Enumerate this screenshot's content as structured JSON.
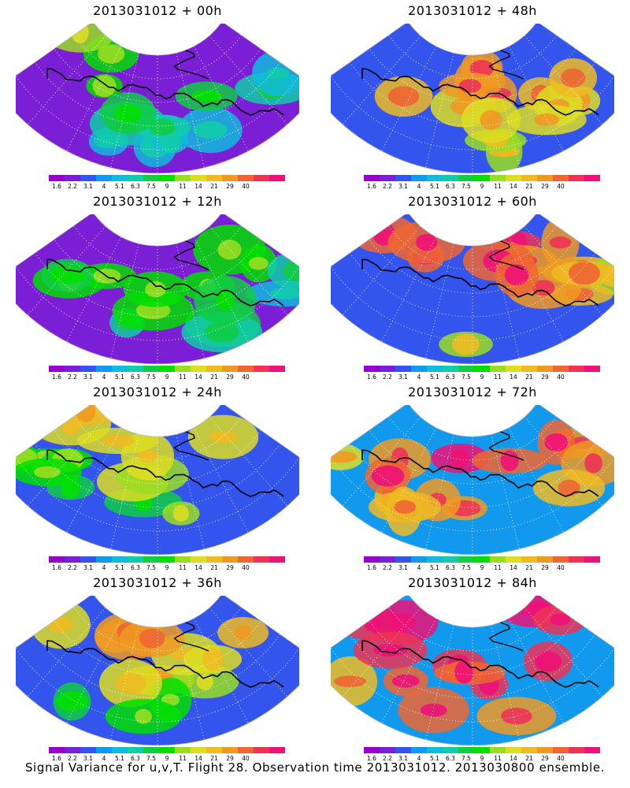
{
  "panels": [
    {
      "title": "2013031012 + 00h",
      "lead": 0
    },
    {
      "title": "2013031012 + 48h",
      "lead": 48
    },
    {
      "title": "2013031012 + 12h",
      "lead": 12
    },
    {
      "title": "2013031012 + 60h",
      "lead": 60
    },
    {
      "title": "2013031012 + 24h",
      "lead": 24
    },
    {
      "title": "2013031012 + 72h",
      "lead": 72
    },
    {
      "title": "2013031012 + 36h",
      "lead": 36
    },
    {
      "title": "2013031012 + 84h",
      "lead": 84
    }
  ],
  "colorbar": {
    "labels": [
      "1.6",
      "2.2",
      "3.1",
      "4",
      "5.1",
      "6.3",
      "7.5",
      "9",
      "11",
      "14",
      "21",
      "29",
      "40"
    ],
    "colors": [
      "#9900cc",
      "#7a1fd6",
      "#3355ee",
      "#1199ee",
      "#11bbdd",
      "#11ccaa",
      "#11cc44",
      "#00e000",
      "#99dd22",
      "#dddd22",
      "#eebb22",
      "#ee9922",
      "#ee6633",
      "#ee3355",
      "#ee1177"
    ]
  },
  "footer": "Signal Variance for u,v,T. Flight 28. Observation time 2013031012. 2013030800 ensemble."
}
